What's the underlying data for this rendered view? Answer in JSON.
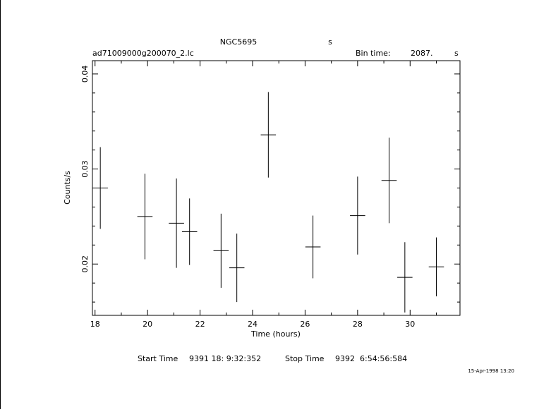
{
  "header": {
    "object": "NGC5695",
    "object_unit": "s",
    "filename": "ad71009000g200070_2.lc",
    "bin_label": "Bin time:",
    "bin_value": "2087.",
    "bin_unit": "s"
  },
  "footer": {
    "start_label": "Start Time",
    "start_value": "9391 18: 9:32:352",
    "stop_label": "Stop Time",
    "stop_value": "9392  6:54:56:584",
    "stamp": "15-Apr-1998 13:20"
  },
  "chart_data": {
    "type": "scatter",
    "title": "NGC5695",
    "xlabel": "Time (hours)",
    "ylabel": "Counts/s",
    "xlim": [
      17.9,
      31.9
    ],
    "ylim": [
      0.0146,
      0.0414
    ],
    "x_ticks": [
      18,
      20,
      22,
      24,
      26,
      28,
      30
    ],
    "y_ticks": [
      0.02,
      0.03,
      0.04
    ],
    "x_tick_labels": [
      "18",
      "20",
      "22",
      "24",
      "26",
      "28",
      "30"
    ],
    "y_tick_labels": [
      "0.02",
      "0.03",
      "0.04"
    ],
    "grid": false,
    "series": [
      {
        "points": [
          {
            "x": 18.2,
            "xerr": 0.29,
            "y": 0.028,
            "yerr": 0.0043
          },
          {
            "x": 19.9,
            "xerr": 0.29,
            "y": 0.025,
            "yerr": 0.0045
          },
          {
            "x": 21.1,
            "xerr": 0.29,
            "y": 0.0243,
            "yerr": 0.0047
          },
          {
            "x": 21.6,
            "xerr": 0.29,
            "y": 0.0234,
            "yerr": 0.0035
          },
          {
            "x": 22.8,
            "xerr": 0.29,
            "y": 0.0214,
            "yerr": 0.0039
          },
          {
            "x": 23.4,
            "xerr": 0.29,
            "y": 0.0196,
            "yerr": 0.0036
          },
          {
            "x": 24.6,
            "xerr": 0.29,
            "y": 0.0336,
            "yerr": 0.0045
          },
          {
            "x": 26.3,
            "xerr": 0.29,
            "y": 0.0218,
            "yerr": 0.0033
          },
          {
            "x": 28.0,
            "xerr": 0.29,
            "y": 0.0251,
            "yerr": 0.0041
          },
          {
            "x": 29.2,
            "xerr": 0.29,
            "y": 0.0288,
            "yerr": 0.0045
          },
          {
            "x": 29.8,
            "xerr": 0.29,
            "y": 0.0186,
            "yerr": 0.0037
          },
          {
            "x": 31.0,
            "xerr": 0.29,
            "y": 0.0197,
            "yerr": 0.0031
          }
        ]
      }
    ]
  }
}
